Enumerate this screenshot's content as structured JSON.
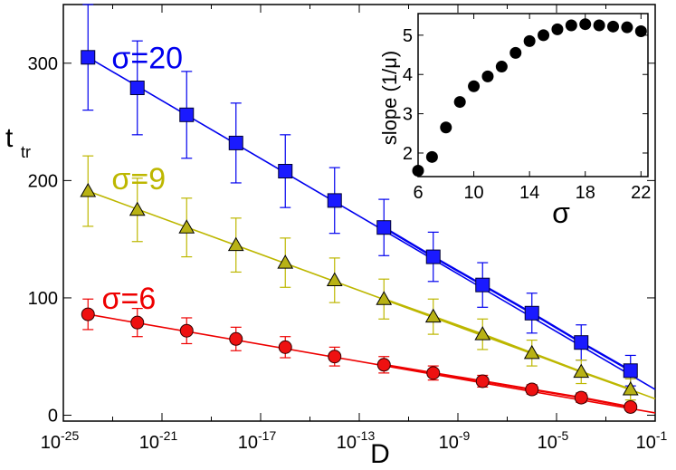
{
  "chart_data": [
    {
      "type": "line",
      "title": "",
      "xlabel": "D",
      "ylabel": "t",
      "ylabel_subscript": "tr",
      "xscale": "log10",
      "xlim_exponent": [
        -25,
        -1
      ],
      "ylim": [
        -5,
        350
      ],
      "x_ticks": [
        {
          "base": "10",
          "exp": "-25",
          "value": -25
        },
        {
          "base": "10",
          "exp": "-21",
          "value": -21
        },
        {
          "base": "10",
          "exp": "-17",
          "value": -17
        },
        {
          "base": "10",
          "exp": "-13",
          "value": -13
        },
        {
          "base": "10",
          "exp": "-9",
          "value": -9
        },
        {
          "base": "10",
          "exp": "-5",
          "value": -5
        },
        {
          "base": "10",
          "exp": "-1",
          "value": -1
        }
      ],
      "y_ticks": [
        {
          "label": "0",
          "value": 0
        },
        {
          "label": "100",
          "value": 100
        },
        {
          "label": "200",
          "value": 200
        },
        {
          "label": "300",
          "value": 300
        }
      ],
      "series": [
        {
          "name": "σ=20",
          "color": "#0000ee",
          "marker_fill": "#1a1aff",
          "marker": "square",
          "x_log10": [
            -24,
            -22,
            -20,
            -18,
            -16,
            -14,
            -12,
            -10,
            -8,
            -6,
            -4,
            -2
          ],
          "values": [
            305,
            279,
            256,
            232,
            208,
            183,
            160,
            135,
            111,
            87,
            62,
            38
          ],
          "errors": [
            45,
            40,
            37,
            34,
            31,
            28,
            24,
            21,
            19,
            17,
            15,
            13
          ],
          "fit_line": {
            "x_log10": [
              -24,
              -1
            ],
            "values": [
              305,
              22
            ]
          }
        },
        {
          "name": "σ=9",
          "color": "#bdb700",
          "marker_fill": "#b8b215",
          "marker": "triangle",
          "x_log10": [
            -24,
            -22,
            -20,
            -18,
            -16,
            -14,
            -12,
            -10,
            -8,
            -6,
            -4,
            -2
          ],
          "values": [
            191,
            175,
            160,
            145,
            130,
            115,
            99,
            84,
            69,
            53,
            37,
            22
          ],
          "errors": [
            30,
            27,
            25,
            23,
            21,
            19,
            17,
            15,
            13,
            11,
            10,
            9
          ],
          "fit_line": {
            "x_log10": [
              -24,
              -1
            ],
            "values": [
              191,
              14
            ]
          }
        },
        {
          "name": "σ=6",
          "color": "#ee0000",
          "marker_fill": "#ee1111",
          "marker": "circle",
          "x_log10": [
            -24,
            -22,
            -20,
            -18,
            -16,
            -14,
            -12,
            -10,
            -8,
            -6,
            -4,
            -2
          ],
          "values": [
            86,
            79,
            72,
            65,
            58,
            50,
            43,
            36,
            29,
            22,
            15,
            7
          ],
          "errors": [
            13,
            12,
            11,
            10,
            9,
            8,
            7,
            6,
            5,
            4,
            4,
            3
          ],
          "fit_line": {
            "x_log10": [
              -24,
              -1
            ],
            "values": [
              86,
              2
            ]
          }
        }
      ]
    },
    {
      "type": "scatter",
      "title": "",
      "xlabel": "σ",
      "ylabel": "slope (1/μ)",
      "xlim": [
        6,
        22.5
      ],
      "ylim": [
        1.4,
        5.55
      ],
      "x_ticks": [
        "6",
        "10",
        "14",
        "18",
        "22"
      ],
      "x_tick_values": [
        6,
        10,
        14,
        18,
        22
      ],
      "y_ticks": [
        "2",
        "3",
        "4",
        "5"
      ],
      "y_tick_values": [
        2,
        3,
        4,
        5
      ],
      "marker_color": "#000000",
      "x": [
        6,
        7,
        8,
        9,
        10,
        11,
        12,
        13,
        14,
        15,
        16,
        17,
        18,
        19,
        20,
        21,
        22
      ],
      "y": [
        1.55,
        1.9,
        2.65,
        3.3,
        3.7,
        3.95,
        4.2,
        4.55,
        4.85,
        5.0,
        5.15,
        5.25,
        5.28,
        5.25,
        5.22,
        5.2,
        5.1
      ]
    }
  ]
}
